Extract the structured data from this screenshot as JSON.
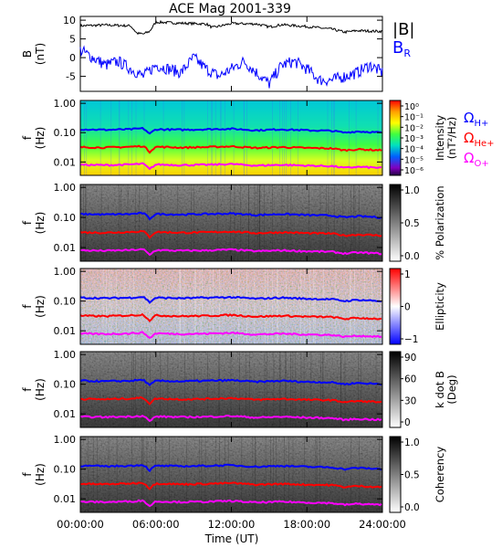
{
  "title": "ACE Mag 2001-339",
  "colors": {
    "bmag": "#000000",
    "br": "#0000ff",
    "h_plus": "#0000ff",
    "he_plus": "#ff0000",
    "o_plus": "#ff00ff",
    "axis": "#000000"
  },
  "chart_data": [
    {
      "type": "line",
      "panel": "field",
      "ylabel": "B",
      "yunit": "(nT)",
      "ylim": [
        -9,
        11
      ],
      "yticks": [
        -5,
        0,
        5,
        10
      ],
      "series": [
        {
          "name": "|B|",
          "key": "bmag",
          "x": [
            0,
            2,
            4,
            4.5,
            5,
            5.5,
            6,
            8,
            10,
            10.5,
            12,
            14,
            15,
            16,
            18,
            20,
            21,
            22,
            24
          ],
          "values": [
            8.5,
            8.7,
            8.5,
            6.5,
            6.3,
            7.0,
            9.5,
            9.2,
            9.0,
            8.0,
            9.1,
            9.0,
            8.2,
            8.8,
            8.3,
            7.6,
            6.8,
            7.2,
            7.0
          ]
        },
        {
          "name": "B",
          "name_sub": "R",
          "key": "br",
          "x": [
            0,
            1,
            2,
            3,
            4,
            5,
            6,
            7,
            8,
            9,
            10,
            11,
            12,
            13,
            14,
            15,
            16,
            17,
            18,
            19,
            20,
            21,
            22,
            23,
            24
          ],
          "values": [
            2,
            0,
            -2,
            -1,
            -3,
            -5,
            -2,
            -3,
            -4,
            0,
            -3,
            -5,
            -3,
            -1,
            -4,
            -7,
            -2,
            -1,
            -3,
            -6,
            -6,
            -5,
            -4,
            -2,
            -4
          ]
        }
      ]
    },
    {
      "type": "heatmap",
      "panel": "intensity",
      "ylabel": "f",
      "yunit": "(Hz)",
      "ytick_labels": [
        "1.00",
        "0.10",
        "0.01"
      ],
      "colorbar_label": "Intensity",
      "colorbar_unit": "(nT²/Hz)",
      "colorbar_ticks": [
        "10⁰",
        "10⁻¹",
        "10⁻²",
        "10⁻³",
        "10⁻⁴",
        "10⁻⁵",
        "10⁻⁶"
      ],
      "legend": [
        {
          "label": "Ω",
          "sub": "H+",
          "key": "h_plus"
        },
        {
          "label": "Ω",
          "sub": "He+",
          "key": "he_plus"
        },
        {
          "label": "Ω",
          "sub": "O+",
          "key": "o_plus"
        }
      ]
    },
    {
      "type": "heatmap",
      "panel": "polarization",
      "ylabel": "f",
      "yunit": "(Hz)",
      "ytick_labels": [
        "1.00",
        "0.10",
        "0.01"
      ],
      "colorbar_label": "% Polarization",
      "colorbar_ticks": [
        "1.0",
        "0.5",
        "0.0"
      ]
    },
    {
      "type": "heatmap",
      "panel": "ellipticity",
      "ylabel": "f",
      "yunit": "(Hz)",
      "ytick_labels": [
        "1.00",
        "0.10",
        "0.01"
      ],
      "colorbar_label": "Ellipticity",
      "colorbar_ticks": [
        "1",
        "0",
        "−1"
      ]
    },
    {
      "type": "heatmap",
      "panel": "kdotb",
      "ylabel": "f",
      "yunit": "(Hz)",
      "ytick_labels": [
        "1.00",
        "0.10",
        "0.01"
      ],
      "colorbar_label": "k dot B",
      "colorbar_unit": "(Deg)",
      "colorbar_ticks": [
        "90",
        "60",
        "30",
        "0"
      ]
    },
    {
      "type": "heatmap",
      "panel": "coherency",
      "ylabel": "f",
      "yunit": "(Hz)",
      "ytick_labels": [
        "1.00",
        "0.10",
        "0.01"
      ],
      "colorbar_label": "Coherency",
      "colorbar_ticks": [
        "1.0",
        "0.5",
        "0.0"
      ]
    }
  ],
  "gyrofrequency_lines": {
    "x": [
      0,
      2,
      4,
      5,
      5.5,
      6,
      8,
      10,
      12,
      14,
      16,
      18,
      20,
      21,
      22,
      24
    ],
    "h_plus": [
      0.13,
      0.125,
      0.13,
      0.14,
      0.09,
      0.13,
      0.125,
      0.13,
      0.135,
      0.12,
      0.13,
      0.12,
      0.115,
      0.1,
      0.11,
      0.1
    ],
    "he_plus": [
      0.032,
      0.031,
      0.033,
      0.035,
      0.022,
      0.033,
      0.031,
      0.032,
      0.034,
      0.03,
      0.032,
      0.03,
      0.029,
      0.025,
      0.027,
      0.025
    ],
    "o_plus": [
      0.008,
      0.0078,
      0.0082,
      0.0087,
      0.0056,
      0.0082,
      0.0078,
      0.008,
      0.0085,
      0.0075,
      0.008,
      0.0075,
      0.0072,
      0.0063,
      0.0068,
      0.0063
    ]
  },
  "x_axis": {
    "label": "Time (UT)",
    "tick_labels": [
      "00:00:00",
      "06:00:00",
      "12:00:00",
      "18:00:00",
      "24:00:00"
    ],
    "tick_values": [
      0,
      6,
      12,
      18,
      24
    ],
    "range": [
      0,
      24
    ]
  }
}
